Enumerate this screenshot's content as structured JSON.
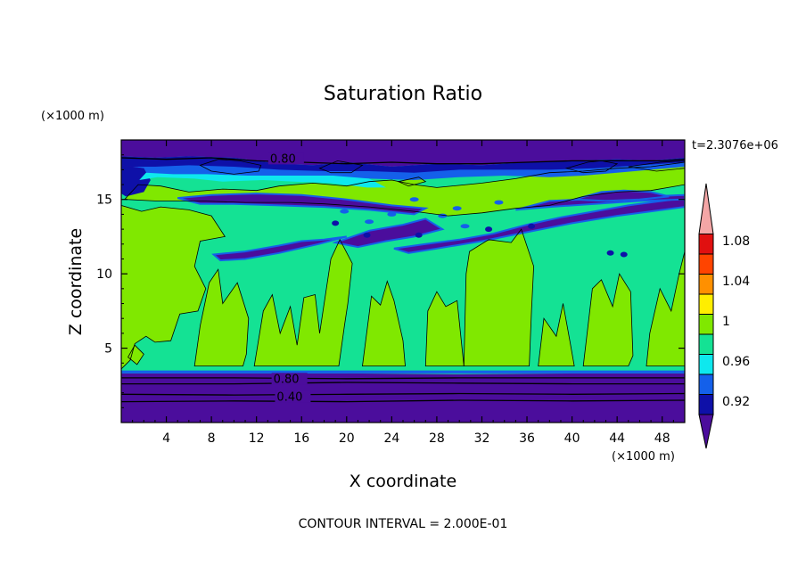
{
  "chart_data": {
    "type": "heatmap",
    "title": "Saturation Ratio",
    "xlabel": "X coordinate",
    "ylabel": "Z coordinate",
    "x_unit": "(×1000 m)",
    "y_unit": "(×1000 m)",
    "xlim": [
      0,
      50
    ],
    "ylim": [
      0,
      19
    ],
    "x_ticks": [
      "4",
      "8",
      "12",
      "16",
      "20",
      "24",
      "28",
      "32",
      "36",
      "40",
      "44",
      "48"
    ],
    "x_tick_values": [
      4,
      8,
      12,
      16,
      20,
      24,
      28,
      32,
      36,
      40,
      44,
      48
    ],
    "y_ticks": [
      "5",
      "10",
      "15"
    ],
    "y_tick_values": [
      5,
      10,
      15
    ],
    "time_label": "t=2.3076e+06",
    "footer": "CONTOUR INTERVAL = 2.000E-01",
    "contour_labels": [
      {
        "text": "0.80",
        "x": 13.2,
        "z": 17.6
      },
      {
        "text": "0.80",
        "x": 13.5,
        "z": 2.8
      },
      {
        "text": "0.40",
        "x": 13.8,
        "z": 1.6
      }
    ],
    "colorbar": {
      "labels": [
        "1.08",
        "1.04",
        "1",
        "0.96",
        "0.92"
      ],
      "levels": [
        0.92,
        0.94,
        0.96,
        0.98,
        1.0,
        1.02,
        1.04,
        1.06,
        1.08
      ],
      "colors": [
        "#4b0d9c",
        "#0e10a8",
        "#1460ea",
        "#0ee8ee",
        "#14e294",
        "#80e800",
        "#ffee00",
        "#ff9000",
        "#ff4400",
        "#e01010",
        "#f4a6a6"
      ]
    },
    "bands": [
      {
        "z": [
          0,
          3.4
        ],
        "value": "<0.92",
        "color": "#4b0d9c"
      },
      {
        "z": [
          3.4,
          15
        ],
        "value": "0.98-1.02",
        "color": "#14e294"
      },
      {
        "z": [
          17.5,
          19
        ],
        "value": "<0.92",
        "color": "#4b0d9c"
      }
    ]
  }
}
